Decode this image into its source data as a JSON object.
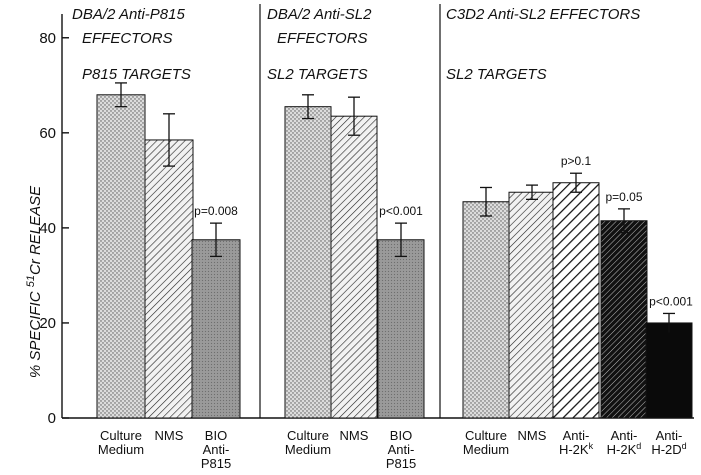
{
  "chart_data": {
    "type": "bar",
    "ylabel": "% SPECIFIC 51Cr RELEASE",
    "ylabel_parts": [
      "% SPECIFIC ",
      "51",
      "Cr RELEASE"
    ],
    "yticks": [
      "0",
      "20",
      "40",
      "60",
      "80"
    ],
    "ylim": [
      0,
      85
    ],
    "grid": false,
    "panels": [
      {
        "effector_title": [
          "DBA/2 Anti-P815",
          "EFFECTORS"
        ],
        "target_title": "P815 TARGETS",
        "bars": [
          {
            "label_lines": [
              "Culture",
              "Medium"
            ],
            "value": 68,
            "err": 2.5,
            "pattern": "dots",
            "annotation": ""
          },
          {
            "label_lines": [
              "NMS"
            ],
            "value": 58.5,
            "err": 5.5,
            "pattern": "diag",
            "annotation": ""
          },
          {
            "label_lines": [
              "BIO",
              "Anti-",
              "P815"
            ],
            "value": 37.5,
            "err": 3.5,
            "pattern": "grey",
            "annotation": "p=0.008"
          }
        ]
      },
      {
        "effector_title": [
          "DBA/2 Anti-SL2",
          "EFFECTORS"
        ],
        "target_title": "SL2 TARGETS",
        "bars": [
          {
            "label_lines": [
              "Culture",
              "Medium"
            ],
            "value": 65.5,
            "err": 2.5,
            "pattern": "dots",
            "annotation": ""
          },
          {
            "label_lines": [
              "NMS"
            ],
            "value": 63.5,
            "err": 4,
            "pattern": "diag",
            "annotation": ""
          },
          {
            "label_lines": [
              "BIO",
              "Anti-",
              "P815"
            ],
            "value": 37.5,
            "err": 3.5,
            "pattern": "grey",
            "annotation": "p<0.001"
          }
        ]
      },
      {
        "effector_title": [
          "C3D2 Anti-SL2 EFFECTORS"
        ],
        "target_title": "SL2 TARGETS",
        "bars": [
          {
            "label_lines": [
              "Culture",
              "Medium"
            ],
            "value": 45.5,
            "err": 3,
            "pattern": "dots",
            "annotation": ""
          },
          {
            "label_lines": [
              "NMS"
            ],
            "value": 47.5,
            "err": 1.5,
            "pattern": "diag",
            "annotation": ""
          },
          {
            "label_lines": [
              "Anti-",
              "H-2K^k"
            ],
            "value": 49.5,
            "err": 2,
            "pattern": "wide",
            "annotation": "p>0.1"
          },
          {
            "label_lines": [
              "Anti-",
              "H-2K^d"
            ],
            "value": 41.5,
            "err": 2.5,
            "pattern": "darkdiag",
            "annotation": "p=0.05"
          },
          {
            "label_lines": [
              "Anti-",
              "H-2D^d"
            ],
            "value": 20,
            "err": 2,
            "pattern": "black",
            "annotation": "p<0.001"
          }
        ]
      }
    ],
    "colors": {
      "ink": "#111111",
      "dots_bg": "#dcdcdc",
      "grey": "#9a9a9a",
      "black": "#0a0a0a"
    }
  }
}
